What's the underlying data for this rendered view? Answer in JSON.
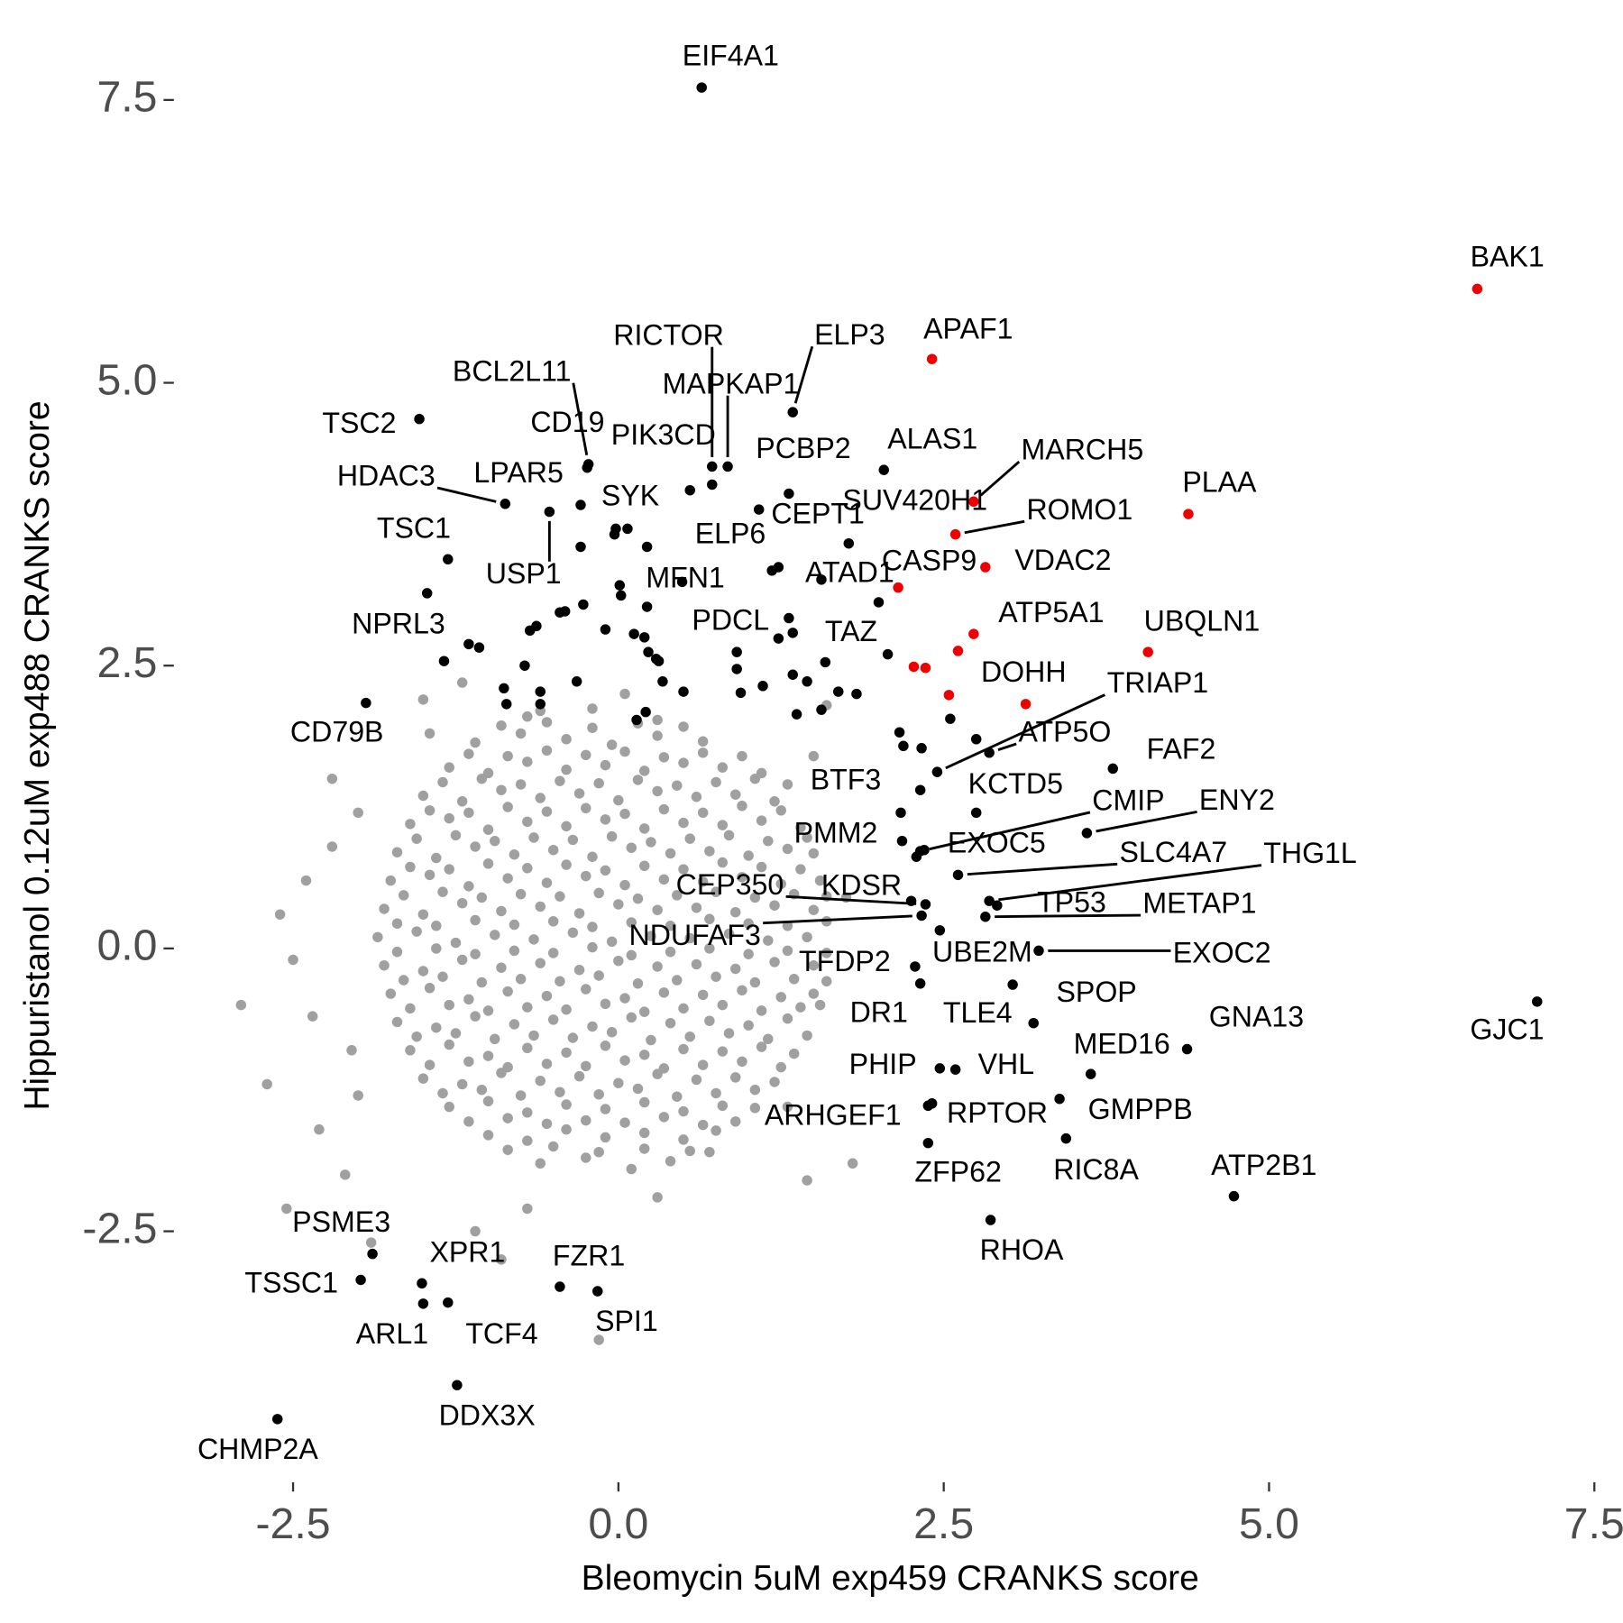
{
  "chart_data": {
    "type": "scatter",
    "x_label": "Bleomycin 5uM exp459 CRANKS score",
    "y_label": "Hippuristanol 0.12uM exp488 CRANKS score",
    "xlim": [
      -3.4,
      7.72
    ],
    "ylim": [
      -4.7,
      8.1
    ],
    "xticks": [
      -2.5,
      {
        "value": 0,
        "label": "0.0"
      },
      2.5,
      {
        "value": 5,
        "label": "5.0"
      },
      7.5
    ],
    "yticks": [
      -2.5,
      {
        "value": 0,
        "label": "0.0"
      },
      2.5,
      {
        "value": 5,
        "label": "5.0"
      },
      7.5
    ],
    "grid": false,
    "series": [
      {
        "color": "#a0a0a0",
        "x": [
          -0.7,
          -0.2,
          0.3,
          -1.1,
          -0.75,
          -0.4,
          -0.05,
          0.3,
          0.65,
          -1.3,
          -1.0,
          -0.7,
          -0.4,
          -0.1,
          0.2,
          0.5,
          0.8,
          1.1,
          -1.5,
          -1.2,
          -0.9,
          -0.6,
          -0.3,
          0,
          0.3,
          0.6,
          0.9,
          1.2,
          -1.6,
          -1.3,
          -1.0,
          -0.7,
          -0.4,
          -0.1,
          0.2,
          0.5,
          0.8,
          1.1,
          1.4,
          -1.7,
          -1.4,
          -1.1,
          -0.8,
          -0.5,
          -0.2,
          0.1,
          0.4,
          0.7,
          1.0,
          1.3,
          1.5,
          -1.75,
          -1.45,
          -1.15,
          -0.85,
          -0.55,
          -0.25,
          0.05,
          0.35,
          0.65,
          0.95,
          1.25,
          1.55,
          -1.8,
          -1.5,
          -1.2,
          -0.9,
          -0.6,
          -0.3,
          0,
          0.3,
          0.6,
          0.9,
          1.2,
          1.5,
          -1.85,
          -1.55,
          -1.25,
          -0.95,
          -0.65,
          -0.35,
          -0.05,
          0.25,
          0.55,
          0.85,
          1.15,
          1.45,
          -1.8,
          -1.5,
          -1.2,
          -0.9,
          -0.6,
          -0.3,
          0,
          0.3,
          0.6,
          0.9,
          1.2,
          1.5,
          -1.75,
          -1.45,
          -1.15,
          -0.85,
          -0.55,
          -0.25,
          0.05,
          0.35,
          0.65,
          0.95,
          1.25,
          1.5,
          -1.7,
          -1.4,
          -1.1,
          -0.8,
          -0.5,
          -0.2,
          0.1,
          0.4,
          0.7,
          1.0,
          1.3,
          -1.6,
          -1.3,
          -1.0,
          -0.7,
          -0.4,
          -0.1,
          0.2,
          0.5,
          0.8,
          1.1,
          1.35,
          -1.5,
          -1.2,
          -0.9,
          -0.6,
          -0.3,
          0,
          0.3,
          0.6,
          0.9,
          1.2,
          -1.3,
          -1.0,
          -0.7,
          -0.4,
          -0.1,
          0.2,
          0.5,
          0.8,
          1.05,
          -1.0,
          -0.7,
          -0.4,
          -0.1,
          0.2,
          0.5,
          0.75,
          -0.6,
          -0.25,
          0.1,
          0.4,
          -0.9,
          -0.55,
          -0.2,
          0.15,
          0.5,
          -1.15,
          -0.85,
          -0.55,
          -0.25,
          0.05,
          0.35,
          0.65,
          0.95,
          -1.35,
          -1.05,
          -0.75,
          -0.45,
          -0.15,
          0.15,
          0.45,
          0.75,
          1.05,
          1.3,
          -1.45,
          -1.15,
          -0.85,
          -0.55,
          -0.25,
          0.05,
          0.35,
          0.65,
          0.95,
          1.25,
          -1.55,
          -1.25,
          -0.95,
          -0.65,
          -0.35,
          -0.05,
          0.25,
          0.55,
          0.85,
          1.15,
          1.45,
          -1.6,
          -1.3,
          -1.0,
          -0.7,
          -0.4,
          -0.1,
          0.2,
          0.5,
          0.8,
          1.1,
          1.4,
          -1.65,
          -1.35,
          -1.05,
          -0.75,
          -0.45,
          -0.15,
          0.15,
          0.45,
          0.75,
          1.05,
          1.35,
          1.6,
          -1.7,
          -1.4,
          -1.1,
          -0.8,
          -0.5,
          -0.2,
          0.1,
          0.4,
          0.7,
          1.0,
          1.3,
          1.6,
          -1.7,
          -1.4,
          -1.1,
          -0.8,
          -0.5,
          -0.2,
          0.1,
          0.4,
          0.7,
          1.0,
          1.3,
          1.6,
          -1.65,
          -1.35,
          -1.05,
          -0.75,
          -0.45,
          -0.15,
          0.15,
          0.45,
          0.75,
          1.05,
          1.35,
          1.6,
          -1.6,
          -1.3,
          -1.0,
          -0.7,
          -0.4,
          -0.1,
          0.2,
          0.5,
          0.8,
          1.1,
          1.4,
          -1.55,
          -1.25,
          -0.95,
          -0.65,
          -0.35,
          -0.05,
          0.25,
          0.55,
          0.85,
          1.15,
          1.45,
          -1.45,
          -1.15,
          -0.85,
          -0.55,
          -0.25,
          0.05,
          0.35,
          0.65,
          0.95,
          1.25,
          -1.35,
          -1.05,
          -0.75,
          -0.45,
          -0.15,
          0.15,
          0.45,
          0.75,
          1.05,
          -1.15,
          -0.85,
          -0.55,
          -0.25,
          0.05,
          0.35,
          0.65,
          0.9,
          -0.85,
          -0.5,
          -0.15,
          0.2,
          0.55,
          -2.9,
          -2.6,
          -2.7,
          -2.5,
          -2.4,
          -2.3,
          -2.2,
          -2.1,
          -2.55,
          -2.05,
          -2.0,
          -1.9,
          -1.5,
          -1.45,
          -1.1,
          -0.7,
          -0.6,
          -0.15,
          0.3,
          0.7,
          1.3,
          1.55,
          1.8,
          1.75,
          1.5,
          1.6,
          1.45,
          -1.2,
          -2.2,
          -2.35,
          -2.0,
          0.05,
          -0.9
        ],
        "values": [
          2.05,
          2.12,
          2.02,
          1.82,
          1.9,
          1.85,
          1.8,
          1.88,
          1.83,
          1.6,
          1.55,
          1.65,
          1.58,
          1.62,
          1.57,
          1.64,
          1.6,
          1.55,
          1.35,
          1.3,
          1.4,
          1.33,
          1.37,
          1.31,
          1.39,
          1.34,
          1.36,
          1.3,
          1.1,
          1.15,
          1.05,
          1.12,
          1.08,
          1.14,
          1.06,
          1.11,
          1.09,
          1.13,
          1.07,
          0.85,
          0.8,
          0.9,
          0.83,
          0.87,
          0.81,
          0.89,
          0.84,
          0.86,
          0.82,
          0.88,
          0.84,
          0.6,
          0.65,
          0.55,
          0.62,
          0.58,
          0.64,
          0.56,
          0.61,
          0.59,
          0.63,
          0.57,
          0.6,
          0.35,
          0.3,
          0.4,
          0.33,
          0.37,
          0.31,
          0.39,
          0.34,
          0.36,
          0.32,
          0.38,
          0.34,
          0.1,
          0.15,
          0.05,
          0.12,
          0.08,
          0.14,
          0.06,
          0.11,
          0.09,
          0.13,
          0.07,
          0.1,
          -0.15,
          -0.2,
          -0.1,
          -0.17,
          -0.13,
          -0.19,
          -0.11,
          -0.16,
          -0.14,
          -0.18,
          -0.12,
          -0.15,
          -0.4,
          -0.35,
          -0.45,
          -0.38,
          -0.42,
          -0.36,
          -0.44,
          -0.39,
          -0.41,
          -0.37,
          -0.43,
          -0.4,
          -0.65,
          -0.7,
          -0.6,
          -0.67,
          -0.63,
          -0.69,
          -0.61,
          -0.66,
          -0.64,
          -0.68,
          -0.62,
          -0.9,
          -0.85,
          -0.95,
          -0.88,
          -0.92,
          -0.86,
          -0.94,
          -0.89,
          -0.91,
          -0.87,
          -0.93,
          -1.15,
          -1.2,
          -1.1,
          -1.17,
          -1.13,
          -1.19,
          -1.11,
          -1.16,
          -1.14,
          -1.18,
          -1.4,
          -1.35,
          -1.45,
          -1.38,
          -1.42,
          -1.36,
          -1.44,
          -1.39,
          -1.41,
          -1.65,
          -1.7,
          -1.6,
          -1.67,
          -1.63,
          -1.69,
          -1.61,
          -1.9,
          -1.85,
          -1.95,
          -1.88,
          1.97,
          2.0,
          1.95,
          1.99,
          1.96,
          1.72,
          1.7,
          1.75,
          1.71,
          1.74,
          1.69,
          1.73,
          1.7,
          1.47,
          1.5,
          1.45,
          1.48,
          1.46,
          1.49,
          1.44,
          1.47,
          1.5,
          1.45,
          1.22,
          1.2,
          1.25,
          1.21,
          1.24,
          1.19,
          1.23,
          1.2,
          1.26,
          1.22,
          0.97,
          1.0,
          0.95,
          0.98,
          0.96,
          0.99,
          0.94,
          0.97,
          1.0,
          0.95,
          0.98,
          0.72,
          0.7,
          0.75,
          0.71,
          0.74,
          0.69,
          0.73,
          0.7,
          0.76,
          0.72,
          0.7,
          0.47,
          0.5,
          0.45,
          0.48,
          0.46,
          0.49,
          0.44,
          0.47,
          0.5,
          0.45,
          0.48,
          0.46,
          0.22,
          0.2,
          0.25,
          0.21,
          0.24,
          0.19,
          0.23,
          0.2,
          0.26,
          0.22,
          0.2,
          0.24,
          -0.03,
          0,
          -0.05,
          -0.02,
          -0.04,
          0.01,
          -0.06,
          -0.03,
          0,
          -0.05,
          -0.02,
          -0.04,
          -0.28,
          -0.25,
          -0.3,
          -0.27,
          -0.29,
          -0.24,
          -0.31,
          -0.28,
          -0.25,
          -0.3,
          -0.27,
          -0.29,
          -0.53,
          -0.5,
          -0.55,
          -0.52,
          -0.54,
          -0.49,
          -0.56,
          -0.53,
          -0.5,
          -0.55,
          -0.52,
          -0.78,
          -0.75,
          -0.8,
          -0.77,
          -0.79,
          -0.74,
          -0.81,
          -0.78,
          -0.75,
          -0.8,
          -0.77,
          -1.03,
          -1.0,
          -1.05,
          -1.02,
          -1.04,
          -0.99,
          -1.06,
          -1.03,
          -1.0,
          -1.05,
          -1.28,
          -1.25,
          -1.3,
          -1.27,
          -1.29,
          -1.24,
          -1.31,
          -1.28,
          -1.25,
          -1.53,
          -1.5,
          -1.55,
          -1.52,
          -1.54,
          -1.49,
          -1.56,
          -1.53,
          -1.78,
          -1.75,
          -1.8,
          -1.77,
          -1.79,
          -0.5,
          0.3,
          -1.2,
          -0.1,
          0.6,
          -1.6,
          1.5,
          -2.0,
          -2.3,
          -0.9,
          1.2,
          -2.6,
          2.2,
          1.9,
          -2.5,
          -2.3,
          2.1,
          -3.46,
          -2.2,
          -1.8,
          -1.4,
          -0.5,
          -1.9,
          0.45,
          1.7,
          2.15,
          -2.05,
          2.35,
          0.9,
          -0.6,
          -1.3,
          2.25,
          -2.75
        ]
      },
      {
        "color": "#000000",
        "x": [
          0.64,
          1.34,
          0.72,
          0.84,
          -0.23,
          -0.24,
          0.72,
          1.31,
          2.04,
          -1.53,
          -0.87,
          -0.29,
          -0.02,
          -0.53,
          -1.31,
          -1.34,
          -1.94,
          0.55,
          1.08,
          1.77,
          0.22,
          2.0,
          0.91,
          1.59,
          2.45,
          2.85,
          3.8,
          2.32,
          2.75,
          2.32,
          3.6,
          2.18,
          2.35,
          2.61,
          2.85,
          2.91,
          2.82,
          2.36,
          2.25,
          2.33,
          2.47,
          3.23,
          2.28,
          2.32,
          3.03,
          3.19,
          4.37,
          7.06,
          3.63,
          2.47,
          2.59,
          3.39,
          2.38,
          2.41,
          2.38,
          3.44,
          4.73,
          2.86,
          -1.89,
          -1.98,
          -1.51,
          -1.5,
          -1.31,
          -0.45,
          -0.16,
          -1.24,
          -2.62,
          -1.47,
          -1.15,
          -1.07,
          -0.88,
          -0.86,
          -0.72,
          -0.68,
          -0.63,
          -0.6,
          -0.6,
          -0.45,
          -0.41,
          -0.32,
          -0.29,
          -0.27,
          -0.1,
          0.01,
          0.02,
          -0.03,
          0.07,
          0.12,
          0.2,
          0.22,
          0.23,
          0.29,
          0.34,
          0.31,
          0.49,
          0.5,
          0.14,
          0.21,
          0.91,
          0.94,
          1.11,
          1.18,
          1.23,
          1.23,
          1.31,
          1.34,
          1.34,
          1.37,
          1.45,
          1.56,
          1.56,
          1.69,
          1.83,
          2.07,
          2.16,
          2.19,
          2.55,
          2.33,
          2.75,
          2.17,
          2.29
        ],
        "values": [
          7.61,
          4.74,
          4.26,
          4.26,
          4.28,
          4.25,
          4.1,
          4.02,
          4.23,
          4.68,
          3.93,
          3.92,
          3.71,
          3.86,
          3.44,
          2.54,
          2.17,
          4.05,
          3.88,
          3.58,
          3.02,
          3.06,
          2.62,
          2.53,
          1.56,
          1.73,
          1.59,
          1.4,
          1.2,
          0.86,
          1.02,
          0.95,
          0.87,
          0.65,
          0.42,
          0.38,
          0.28,
          0.39,
          0.42,
          0.29,
          0.16,
          -0.02,
          -0.16,
          -0.31,
          -0.32,
          -0.66,
          -0.89,
          -0.47,
          -1.11,
          -1.06,
          -1.07,
          -1.33,
          -1.39,
          -1.37,
          -1.72,
          -1.68,
          -2.19,
          -2.4,
          -2.7,
          -2.93,
          -2.96,
          -3.14,
          -3.13,
          -2.99,
          -3.03,
          -3.86,
          -4.16,
          3.14,
          2.69,
          2.66,
          2.3,
          2.16,
          2.5,
          2.81,
          2.85,
          2.27,
          2.16,
          2.97,
          2.98,
          2.36,
          3.55,
          3.04,
          2.82,
          3.21,
          3.12,
          3.66,
          3.71,
          2.78,
          2.75,
          3.55,
          2.62,
          2.56,
          2.36,
          2.54,
          3.24,
          2.27,
          2.02,
          2.09,
          2.47,
          2.26,
          2.32,
          3.34,
          3.37,
          2.74,
          2.92,
          2.79,
          2.42,
          2.07,
          2.36,
          3.26,
          2.11,
          2.27,
          2.25,
          2.6,
          1.91,
          1.79,
          2.03,
          1.77,
          1.85,
          1.2,
          0.81
        ],
        "labels": [
          "EIF4A1",
          "ELP3",
          "RICTOR",
          "MAPKAP1",
          "BCL2L11",
          "CD19",
          "PIK3CD",
          "PCBP2",
          "ALAS1",
          "TSC2",
          "HDAC3",
          "LPAR5",
          "SYK",
          "USP1",
          "TSC1",
          "NPRL3",
          "CD79B",
          "ELP6",
          "CEPT1",
          "SUV420H1",
          "MFN1",
          "ATAD1",
          "PDCL",
          "TAZ",
          "TRIAP1",
          "ATP5O",
          "FAF2",
          "BTF3",
          "KCTD5",
          "CMIP",
          "ENY2",
          "PMM2",
          "EXOC5",
          "SLC4A7",
          "THG1L",
          "TP53",
          "METAP1",
          "CEP350",
          "KDSR",
          "NDUFAF3",
          "UBE2M",
          "EXOC2",
          "TFDP2",
          "DR1",
          "SPOP",
          "TLE4",
          "GNA13",
          "GJC1",
          "MED16",
          "PHIP",
          "VHL",
          "GMPPB",
          "ARHGEF1",
          "RPTOR",
          "ZFP62",
          "RIC8A",
          "ATP2B1",
          "RHOA",
          "PSME3",
          "TSSC1",
          "XPR1",
          "ARL1",
          "TCF4",
          "FZR1",
          "SPI1",
          "DDX3X",
          "CHMP2A",
          null,
          null,
          null,
          null,
          null,
          null,
          null,
          null,
          null,
          null,
          null,
          null,
          null,
          null,
          null,
          null,
          null,
          null,
          null,
          null,
          null,
          null,
          null,
          null,
          null,
          null,
          null,
          null,
          null,
          null,
          null,
          null,
          null,
          null,
          null,
          null,
          null,
          null,
          null,
          null,
          null,
          null,
          null,
          null,
          null,
          null,
          null,
          null,
          null,
          null,
          null,
          null,
          null,
          null
        ]
      },
      {
        "color": "#ee0000",
        "x": [
          6.6,
          2.41,
          2.73,
          2.59,
          2.82,
          4.38,
          2.15,
          2.73,
          4.07,
          3.13,
          2.61,
          2.27,
          2.36,
          2.54
        ],
        "values": [
          5.83,
          5.21,
          3.95,
          3.66,
          3.37,
          3.84,
          3.19,
          2.78,
          2.62,
          2.16,
          2.63,
          2.49,
          2.48,
          2.24
        ],
        "labels": [
          "BAK1",
          "APAF1",
          "MARCH5",
          "ROMO1",
          "VDAC2",
          "PLAA",
          "CASP9",
          "ATP5A1",
          "UBQLN1",
          "DOHH",
          null,
          null,
          null,
          null
        ]
      }
    ]
  }
}
